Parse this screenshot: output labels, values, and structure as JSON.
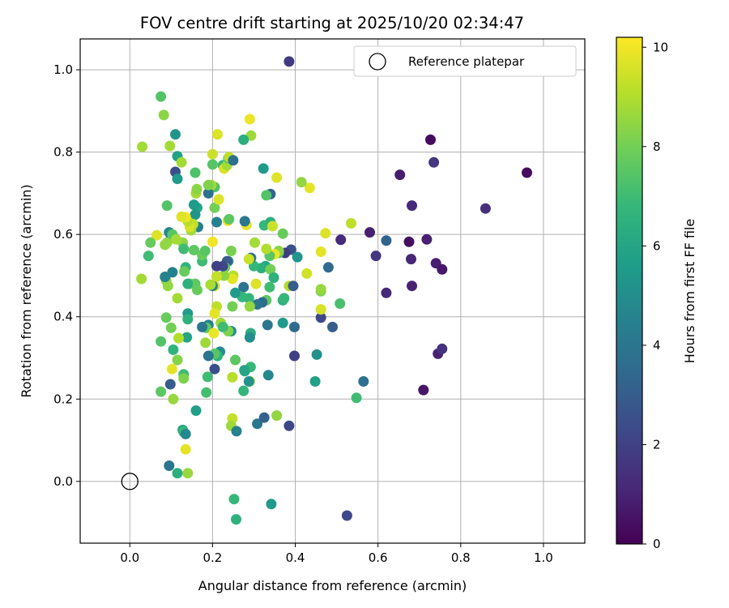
{
  "chart_data": {
    "type": "scatter",
    "title": "FOV centre drift starting at 2025/10/20 02:34:47",
    "xlabel": "Angular distance from reference (arcmin)",
    "ylabel": "Rotation from reference (arcmin)",
    "xlim": [
      -0.12,
      1.1
    ],
    "ylim": [
      -0.15,
      1.075
    ],
    "xticks": [
      "0.0",
      "0.2",
      "0.4",
      "0.6",
      "0.8",
      "1.0"
    ],
    "xtick_values": [
      0.0,
      0.2,
      0.4,
      0.6,
      0.8,
      1.0
    ],
    "yticks": [
      "0.0",
      "0.2",
      "0.4",
      "0.6",
      "0.8",
      "1.0"
    ],
    "ytick_values": [
      0.0,
      0.2,
      0.4,
      0.6,
      0.8,
      1.0
    ],
    "grid": true,
    "legend": {
      "placement": "top-right",
      "entries": [
        "Reference platepar"
      ]
    },
    "reference_point": {
      "x": 0.0,
      "y": 0.0,
      "name": "Reference platepar"
    },
    "colorbar": {
      "label": "Hours from first FF file",
      "min": 0,
      "max": 10.2,
      "colormap": "viridis",
      "ticks": [
        "0",
        "2",
        "4",
        "6",
        "8",
        "10"
      ],
      "tick_values": [
        0,
        2,
        4,
        6,
        8,
        10
      ]
    },
    "points": [
      [
        0.385,
        1.02,
        1.8
      ],
      [
        0.96,
        0.75,
        0.3
      ],
      [
        0.727,
        0.83,
        0.3
      ],
      [
        0.735,
        0.775,
        1.6
      ],
      [
        0.653,
        0.745,
        0.8
      ],
      [
        0.682,
        0.67,
        1.2
      ],
      [
        0.86,
        0.663,
        1.4
      ],
      [
        0.58,
        0.605,
        0.9
      ],
      [
        0.675,
        0.582,
        0.4
      ],
      [
        0.718,
        0.588,
        0.9
      ],
      [
        0.62,
        0.585,
        3.2
      ],
      [
        0.51,
        0.587,
        1.2
      ],
      [
        0.595,
        0.548,
        1.6
      ],
      [
        0.68,
        0.54,
        1.1
      ],
      [
        0.74,
        0.53,
        0.9
      ],
      [
        0.755,
        0.515,
        0.7
      ],
      [
        0.62,
        0.458,
        1.2
      ],
      [
        0.682,
        0.475,
        1.0
      ],
      [
        0.745,
        0.31,
        1.0
      ],
      [
        0.755,
        0.322,
        1.5
      ],
      [
        0.71,
        0.222,
        0.6
      ],
      [
        0.525,
        -0.083,
        2.2
      ],
      [
        0.565,
        0.243,
        3.8
      ],
      [
        0.548,
        0.203,
        7.0
      ],
      [
        0.508,
        0.432,
        7.2
      ],
      [
        0.49,
        0.375,
        3.0
      ],
      [
        0.462,
        0.398,
        2.2
      ],
      [
        0.452,
        0.308,
        5.2
      ],
      [
        0.448,
        0.243,
        5.8
      ],
      [
        0.48,
        0.52,
        3.5
      ],
      [
        0.462,
        0.462,
        8.2
      ],
      [
        0.462,
        0.467,
        8.6
      ],
      [
        0.462,
        0.418,
        9.6
      ],
      [
        0.462,
        0.558,
        9.8
      ],
      [
        0.473,
        0.603,
        9.7
      ],
      [
        0.535,
        0.627,
        9.2
      ],
      [
        0.428,
        0.505,
        9.5
      ],
      [
        0.385,
        0.475,
        9.0
      ],
      [
        0.39,
        0.563,
        2.6
      ],
      [
        0.375,
        0.555,
        1.8
      ],
      [
        0.405,
        0.545,
        5.3
      ],
      [
        0.395,
        0.475,
        3.0
      ],
      [
        0.398,
        0.375,
        3.5
      ],
      [
        0.398,
        0.305,
        2.0
      ],
      [
        0.385,
        0.135,
        2.2
      ],
      [
        0.37,
        0.385,
        5.5
      ],
      [
        0.37,
        0.44,
        6.5
      ],
      [
        0.373,
        0.445,
        6.8
      ],
      [
        0.37,
        0.602,
        7.8
      ],
      [
        0.435,
        0.713,
        9.8
      ],
      [
        0.415,
        0.727,
        8.5
      ],
      [
        0.36,
        0.555,
        7.2
      ],
      [
        0.36,
        0.56,
        8.4
      ],
      [
        0.355,
        0.738,
        9.7
      ],
      [
        0.34,
        0.698,
        3.2
      ],
      [
        0.33,
        0.695,
        7.4
      ],
      [
        0.325,
        0.622,
        6.8
      ],
      [
        0.323,
        0.76,
        5.5
      ],
      [
        0.34,
        0.63,
        6.5
      ],
      [
        0.345,
        0.62,
        9.4
      ],
      [
        0.35,
        0.552,
        9.9
      ],
      [
        0.338,
        0.548,
        7.5
      ],
      [
        0.33,
        0.565,
        9.0
      ],
      [
        0.328,
        0.523,
        6.0
      ],
      [
        0.318,
        0.518,
        6.4
      ],
      [
        0.34,
        0.515,
        8.0
      ],
      [
        0.348,
        0.495,
        6.5
      ],
      [
        0.338,
        0.472,
        7.0
      ],
      [
        0.33,
        0.44,
        7.6
      ],
      [
        0.32,
        0.435,
        3.5
      ],
      [
        0.308,
        0.43,
        4.0
      ],
      [
        0.305,
        0.48,
        9.7
      ],
      [
        0.3,
        0.523,
        6.8
      ],
      [
        0.302,
        0.58,
        8.8
      ],
      [
        0.293,
        0.543,
        4.0
      ],
      [
        0.288,
        0.54,
        9.4
      ],
      [
        0.29,
        0.88,
        9.9
      ],
      [
        0.293,
        0.84,
        8.7
      ],
      [
        0.282,
        0.623,
        9.8
      ],
      [
        0.288,
        0.445,
        6.7
      ],
      [
        0.29,
        0.425,
        8.5
      ],
      [
        0.292,
        0.36,
        6.4
      ],
      [
        0.29,
        0.35,
        5.0
      ],
      [
        0.292,
        0.278,
        6.8
      ],
      [
        0.29,
        0.243,
        8.9
      ],
      [
        0.288,
        0.243,
        5.2
      ],
      [
        0.277,
        0.27,
        5.3
      ],
      [
        0.278,
        0.268,
        6.0
      ],
      [
        0.275,
        0.22,
        6.7
      ],
      [
        0.275,
        0.472,
        4.0
      ],
      [
        0.272,
        0.448,
        6.8
      ],
      [
        0.278,
        0.632,
        4.0
      ],
      [
        0.255,
        0.295,
        7.6
      ],
      [
        0.248,
        0.253,
        9.1
      ],
      [
        0.248,
        0.153,
        9.3
      ],
      [
        0.245,
        0.135,
        8.7
      ],
      [
        0.258,
        0.122,
        4.5
      ],
      [
        0.252,
        -0.043,
        6.8
      ],
      [
        0.257,
        -0.092,
        6.5
      ],
      [
        0.308,
        0.14,
        4.0
      ],
      [
        0.325,
        0.155,
        3.2
      ],
      [
        0.335,
        0.258,
        4.8
      ],
      [
        0.342,
        -0.055,
        5.5
      ],
      [
        0.355,
        0.16,
        8.5
      ],
      [
        0.333,
        0.38,
        4.0
      ],
      [
        0.245,
        0.365,
        5.0
      ],
      [
        0.238,
        0.365,
        8.2
      ],
      [
        0.248,
        0.425,
        8.0
      ],
      [
        0.255,
        0.458,
        5.5
      ],
      [
        0.25,
        0.5,
        9.1
      ],
      [
        0.248,
        0.492,
        9.8
      ],
      [
        0.245,
        0.56,
        8.1
      ],
      [
        0.237,
        0.633,
        9.9
      ],
      [
        0.24,
        0.637,
        7.6
      ],
      [
        0.238,
        0.535,
        5.4
      ],
      [
        0.235,
        0.535,
        3.0
      ],
      [
        0.23,
        0.52,
        7.8
      ],
      [
        0.228,
        0.5,
        8.4
      ],
      [
        0.225,
        0.523,
        2.2
      ],
      [
        0.21,
        0.523,
        2.0
      ],
      [
        0.21,
        0.498,
        9.3
      ],
      [
        0.205,
        0.475,
        9.6
      ],
      [
        0.2,
        0.475,
        4.6
      ],
      [
        0.195,
        0.478,
        8.9
      ],
      [
        0.21,
        0.425,
        9.2
      ],
      [
        0.205,
        0.408,
        9.8
      ],
      [
        0.22,
        0.385,
        8.7
      ],
      [
        0.225,
        0.375,
        7.0
      ],
      [
        0.218,
        0.315,
        5.0
      ],
      [
        0.212,
        0.305,
        6.5
      ],
      [
        0.205,
        0.31,
        7.5
      ],
      [
        0.19,
        0.305,
        4.0
      ],
      [
        0.205,
        0.273,
        2.5
      ],
      [
        0.188,
        0.254,
        7.0
      ],
      [
        0.185,
        0.216,
        7.1
      ],
      [
        0.19,
        0.38,
        4.5
      ],
      [
        0.185,
        0.373,
        7.6
      ],
      [
        0.175,
        0.375,
        4.0
      ],
      [
        0.183,
        0.337,
        8.7
      ],
      [
        0.203,
        0.36,
        9.9
      ],
      [
        0.2,
        0.582,
        10.0
      ],
      [
        0.21,
        0.63,
        4.5
      ],
      [
        0.205,
        0.665,
        8.0
      ],
      [
        0.205,
        0.715,
        7.4
      ],
      [
        0.197,
        0.72,
        8.8
      ],
      [
        0.19,
        0.7,
        3.8
      ],
      [
        0.19,
        0.72,
        8.2
      ],
      [
        0.215,
        0.685,
        9.7
      ],
      [
        0.2,
        0.77,
        7.5
      ],
      [
        0.212,
        0.843,
        9.7
      ],
      [
        0.2,
        0.795,
        9.4
      ],
      [
        0.225,
        0.768,
        6.7
      ],
      [
        0.228,
        0.76,
        9.6
      ],
      [
        0.235,
        0.768,
        8.8
      ],
      [
        0.238,
        0.785,
        7.5
      ],
      [
        0.24,
        0.788,
        9.2
      ],
      [
        0.25,
        0.78,
        3.8
      ],
      [
        0.275,
        0.83,
        6.4
      ],
      [
        0.158,
        0.75,
        7.3
      ],
      [
        0.163,
        0.665,
        6.0
      ],
      [
        0.155,
        0.672,
        5.5
      ],
      [
        0.158,
        0.648,
        5.3
      ],
      [
        0.16,
        0.7,
        8.8
      ],
      [
        0.162,
        0.71,
        8.4
      ],
      [
        0.165,
        0.618,
        4.4
      ],
      [
        0.153,
        0.625,
        9.2
      ],
      [
        0.148,
        0.61,
        8.8
      ],
      [
        0.145,
        0.618,
        9.6
      ],
      [
        0.14,
        0.632,
        9.1
      ],
      [
        0.135,
        0.642,
        10.0
      ],
      [
        0.125,
        0.643,
        9.7
      ],
      [
        0.128,
        0.58,
        8.4
      ],
      [
        0.13,
        0.565,
        7.0
      ],
      [
        0.135,
        0.52,
        6.6
      ],
      [
        0.132,
        0.51,
        7.8
      ],
      [
        0.155,
        0.562,
        7.6
      ],
      [
        0.158,
        0.48,
        7.6
      ],
      [
        0.163,
        0.465,
        7.8
      ],
      [
        0.175,
        0.535,
        7.0
      ],
      [
        0.175,
        0.55,
        7.8
      ],
      [
        0.182,
        0.56,
        7.5
      ],
      [
        0.145,
        0.48,
        7.8
      ],
      [
        0.14,
        0.48,
        6.5
      ],
      [
        0.14,
        0.408,
        5.5
      ],
      [
        0.14,
        0.394,
        6.5
      ],
      [
        0.138,
        0.35,
        6.0
      ],
      [
        0.13,
        0.26,
        7.0
      ],
      [
        0.13,
        0.25,
        8.2
      ],
      [
        0.128,
        0.125,
        6.0
      ],
      [
        0.13,
        0.12,
        6.8
      ],
      [
        0.135,
        0.115,
        4.8
      ],
      [
        0.135,
        0.078,
        9.8
      ],
      [
        0.14,
        0.02,
        8.6
      ],
      [
        0.115,
        0.02,
        6.4
      ],
      [
        0.095,
        0.038,
        4.0
      ],
      [
        0.16,
        0.172,
        5.7
      ],
      [
        0.105,
        0.2,
        8.6
      ],
      [
        0.102,
        0.273,
        9.8
      ],
      [
        0.098,
        0.236,
        3.0
      ],
      [
        0.075,
        0.218,
        7.6
      ],
      [
        0.115,
        0.295,
        8.3
      ],
      [
        0.105,
        0.32,
        6.6
      ],
      [
        0.118,
        0.348,
        9.0
      ],
      [
        0.1,
        0.373,
        8.0
      ],
      [
        0.088,
        0.398,
        7.8
      ],
      [
        0.075,
        0.34,
        7.4
      ],
      [
        0.088,
        0.488,
        8.5
      ],
      [
        0.092,
        0.475,
        8.5
      ],
      [
        0.085,
        0.497,
        4.5
      ],
      [
        0.115,
        0.445,
        8.8
      ],
      [
        0.103,
        0.508,
        4.5
      ],
      [
        0.1,
        0.595,
        4.5
      ],
      [
        0.09,
        0.58,
        8.5
      ],
      [
        0.085,
        0.575,
        8.5
      ],
      [
        0.095,
        0.605,
        4.8
      ],
      [
        0.103,
        0.6,
        7.5
      ],
      [
        0.112,
        0.588,
        8.8
      ],
      [
        0.09,
        0.67,
        7.4
      ],
      [
        0.097,
        0.815,
        8.8
      ],
      [
        0.075,
        0.935,
        7.4
      ],
      [
        0.082,
        0.89,
        8.4
      ],
      [
        0.11,
        0.843,
        5.3
      ],
      [
        0.115,
        0.79,
        5.8
      ],
      [
        0.11,
        0.752,
        2.5
      ],
      [
        0.115,
        0.735,
        5.5
      ],
      [
        0.125,
        0.775,
        8.8
      ],
      [
        0.065,
        0.598,
        9.7
      ],
      [
        0.05,
        0.58,
        7.8
      ],
      [
        0.045,
        0.548,
        7.0
      ],
      [
        0.03,
        0.813,
        8.8
      ],
      [
        0.028,
        0.492,
        8.8
      ]
    ]
  }
}
